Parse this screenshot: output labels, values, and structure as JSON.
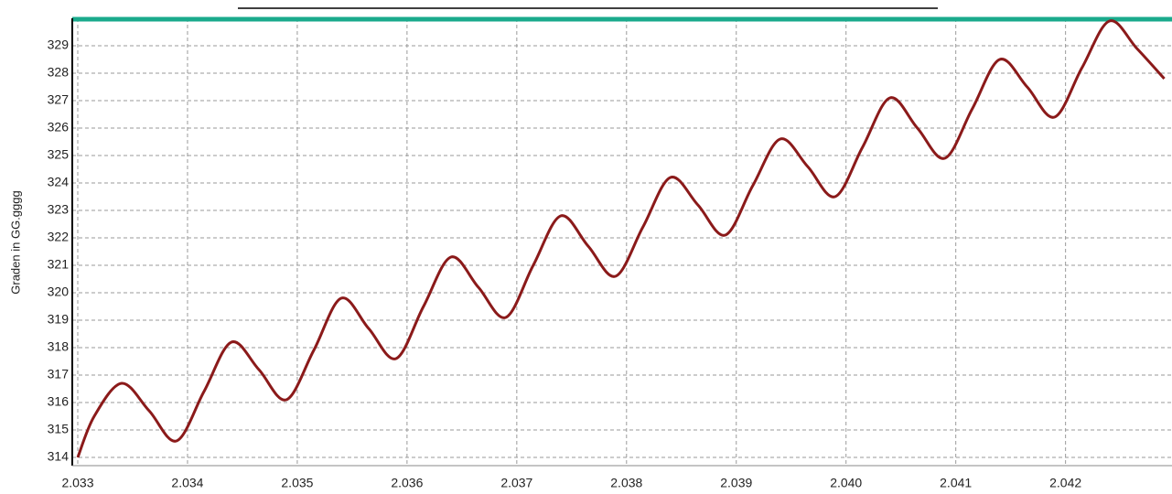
{
  "chart_data": {
    "type": "line",
    "y_label": "Graden in GG.gggg",
    "x": [
      2.033,
      2.03315,
      2.0334,
      2.03365,
      2.0339,
      2.03415,
      2.0344,
      2.03465,
      2.0349,
      2.03515,
      2.0354,
      2.03565,
      2.0359,
      2.03615,
      2.0364,
      2.03665,
      2.0369,
      2.03715,
      2.0374,
      2.03765,
      2.0379,
      2.03815,
      2.0384,
      2.03865,
      2.0389,
      2.03915,
      2.0394,
      2.03965,
      2.0399,
      2.04015,
      2.0404,
      2.04065,
      2.0409,
      2.04115,
      2.0414,
      2.04165,
      2.0419,
      2.04215,
      2.0424,
      2.04265,
      2.0429
    ],
    "series": [
      {
        "color": "#8b1a1a",
        "values": [
          314.0,
          315.5,
          316.7,
          315.7,
          314.6,
          316.4,
          318.2,
          317.2,
          316.1,
          317.9,
          319.8,
          318.7,
          317.6,
          319.5,
          321.3,
          320.2,
          319.1,
          321.0,
          322.8,
          321.7,
          320.6,
          322.4,
          324.2,
          323.2,
          322.1,
          323.9,
          325.6,
          324.6,
          323.5,
          325.3,
          327.1,
          326.0,
          324.9,
          326.7,
          328.5,
          327.5,
          326.4,
          328.2,
          329.9,
          328.9,
          327.8
        ]
      }
    ],
    "xlim": [
      2.03295,
      2.04297
    ],
    "xticks": [
      2.033,
      2.034,
      2.035,
      2.036,
      2.037,
      2.038,
      2.039,
      {
        "value": 2.04,
        "label": "2.040"
      },
      2.041,
      2.042
    ],
    "ylim": [
      313.7,
      330.0
    ],
    "yticks": [
      314,
      315,
      316,
      317,
      318,
      319,
      320,
      321,
      322,
      323,
      324,
      325,
      326,
      327,
      328,
      329
    ],
    "grid": true
  }
}
